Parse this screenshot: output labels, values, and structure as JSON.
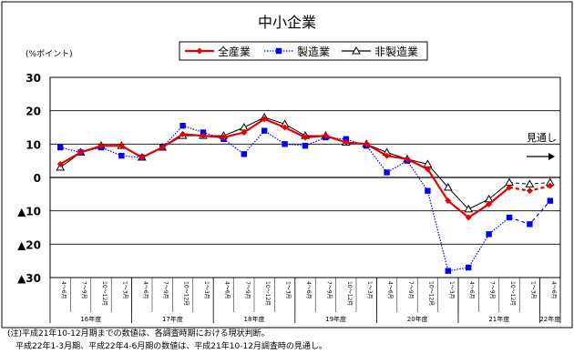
{
  "chart_data": {
    "type": "line",
    "title": "中小企業",
    "ylabel": "(%ポイント)",
    "ylim": [
      -30,
      30
    ],
    "y_ticks": [
      "30",
      "20",
      "10",
      "0",
      "▲10",
      "▲20",
      "▲30"
    ],
    "y_tick_values": [
      30,
      20,
      10,
      0,
      -10,
      -20,
      -30
    ],
    "categories": [
      "4～6月",
      "7～9月",
      "10～12月",
      "1～3月",
      "4～6月",
      "7～9月",
      "10～12月",
      "1～3月",
      "4～6月",
      "7～9月",
      "10～12月",
      "1～3月",
      "4～6月",
      "7～9月",
      "10～12月",
      "1～3月",
      "4～6月",
      "7～9月",
      "10～12月",
      "1～3月",
      "4～6月",
      "7～9月",
      "10～12月",
      "1～3月",
      "4～6月"
    ],
    "year_groups": [
      {
        "label": "16年度",
        "start": 0,
        "count": 4
      },
      {
        "label": "17年度",
        "start": 4,
        "count": 4
      },
      {
        "label": "18年度",
        "start": 8,
        "count": 4
      },
      {
        "label": "19年度",
        "start": 12,
        "count": 4
      },
      {
        "label": "20年度",
        "start": 16,
        "count": 4
      },
      {
        "label": "21年度",
        "start": 20,
        "count": 4
      },
      {
        "label": "22年度",
        "start": 24,
        "count": 1
      }
    ],
    "forecast_start_index": 23,
    "outlook_label": "見通し",
    "series": [
      {
        "name": "全産業",
        "color": "#e60000",
        "marker": "diamond",
        "line_style": "solid",
        "values": [
          4,
          7.5,
          9.5,
          9.5,
          6,
          9,
          13,
          12.5,
          12,
          13.5,
          17.5,
          15,
          12,
          12.5,
          10.5,
          10,
          6.5,
          5.5,
          2.5,
          -7,
          -12,
          -8,
          -3,
          -4,
          -2.5
        ]
      },
      {
        "name": "製造業",
        "color": "#0000ff",
        "marker": "square",
        "line_style": "dotted",
        "values": [
          9,
          7.5,
          9,
          6.5,
          6,
          9,
          15.5,
          13.5,
          11.5,
          7,
          14,
          10,
          9.5,
          12,
          11.5,
          9.5,
          1.5,
          5,
          -4,
          -28,
          -27,
          -17,
          -12,
          -14,
          -7
        ]
      },
      {
        "name": "非製造業",
        "color": "#000000",
        "marker": "triangle",
        "line_style": "solid",
        "values": [
          3,
          7.5,
          9.5,
          9.5,
          6,
          9,
          12.5,
          12.5,
          12.5,
          15,
          18,
          16,
          12.5,
          12.5,
          10.5,
          10,
          7.5,
          5.5,
          4,
          -3,
          -9.5,
          -6.5,
          -1.5,
          -2,
          -1.5
        ]
      }
    ]
  },
  "notes": [
    "(注)平成21年10-12月期までの数値は、各調査時期における現状判断。",
    "　平成22年1-3月期、平成22年4-6月期の数値は、平成21年10-12月調査時の見通し。"
  ]
}
